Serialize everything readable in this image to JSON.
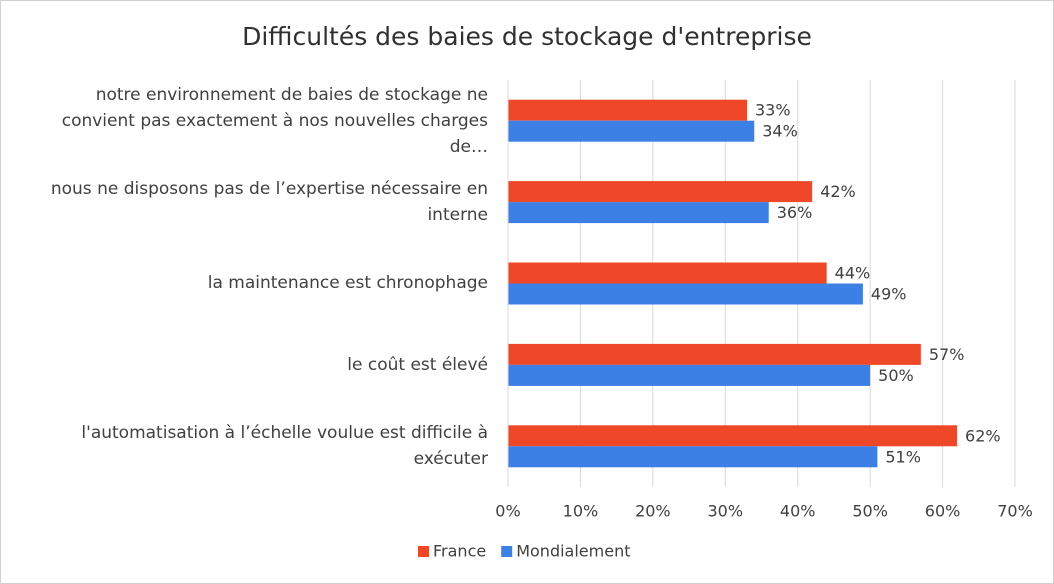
{
  "chart_data": {
    "type": "bar",
    "orientation": "horizontal",
    "title": "Difficultés des baies de stockage d'entreprise",
    "categories": [
      "notre environnement de baies de stockage ne convient pas exactement à nos nouvelles charges de…",
      "nous ne disposons pas de l’expertise nécessaire en interne",
      "la maintenance est chronophage",
      "le coût est élevé",
      "l'automatisation à l’échelle voulue est difficile à exécuter"
    ],
    "series": [
      {
        "name": "France",
        "color": "#ef4829",
        "values": [
          33,
          42,
          44,
          57,
          62
        ],
        "value_labels": [
          "33%",
          "42%",
          "44%",
          "57%",
          "62%"
        ]
      },
      {
        "name": "Mondialement",
        "color": "#3c80e6",
        "values": [
          34,
          36,
          49,
          50,
          51
        ],
        "value_labels": [
          "34%",
          "36%",
          "49%",
          "50%",
          "51%"
        ]
      }
    ],
    "xlim": [
      0,
      70
    ],
    "xticks": [
      {
        "value": 0,
        "label": "0%"
      },
      {
        "value": 10,
        "label": "10%"
      },
      {
        "value": 20,
        "label": "20%"
      },
      {
        "value": 30,
        "label": "30%"
      },
      {
        "value": 40,
        "label": "40%"
      },
      {
        "value": 50,
        "label": "50%"
      },
      {
        "value": 60,
        "label": "60%"
      },
      {
        "value": 70,
        "label": "70%"
      }
    ],
    "grid": true,
    "legend": "bottom"
  }
}
